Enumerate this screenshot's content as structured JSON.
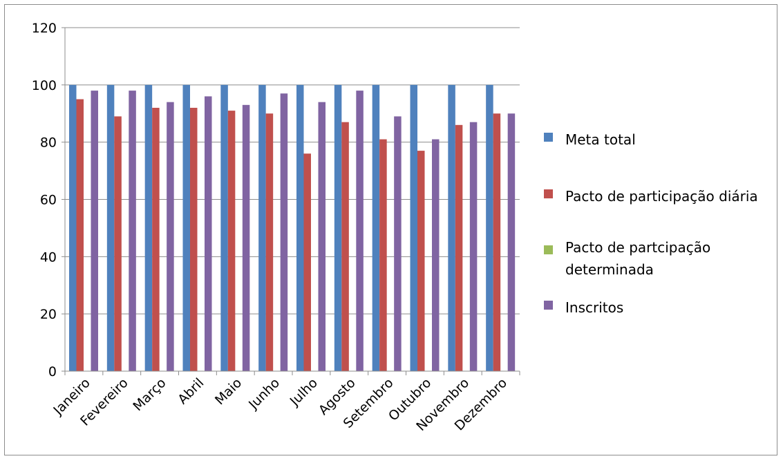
{
  "chart_data": {
    "type": "bar",
    "title": "",
    "xlabel": "",
    "ylabel": "",
    "ylim": [
      0,
      120
    ],
    "yticks": [
      0,
      20,
      40,
      60,
      80,
      100,
      120
    ],
    "grid": true,
    "legend_position": "right",
    "categories": [
      "Janeiro",
      "Fevereiro",
      "Março",
      "Abril",
      "Maio",
      "Junho",
      "Julho",
      "Agosto",
      "Setembro",
      "Outubro",
      "Novembro",
      "Dezembro"
    ],
    "series": [
      {
        "name": "Meta total",
        "color": "#4f81bd",
        "values": [
          100,
          100,
          100,
          100,
          100,
          100,
          100,
          100,
          100,
          100,
          100,
          100
        ]
      },
      {
        "name": "Pacto de participação diária",
        "color": "#c0504d",
        "values": [
          95,
          89,
          92,
          92,
          91,
          90,
          76,
          87,
          81,
          77,
          86,
          90
        ]
      },
      {
        "name": "Pacto de partcipação determinada",
        "color": "#9bbb59",
        "values": [
          0,
          0,
          0,
          0,
          0,
          0,
          0,
          0,
          0,
          0,
          0,
          0
        ]
      },
      {
        "name": "Inscritos",
        "color": "#8064a2",
        "values": [
          98,
          98,
          94,
          96,
          93,
          97,
          94,
          98,
          89,
          81,
          87,
          90
        ]
      }
    ]
  }
}
